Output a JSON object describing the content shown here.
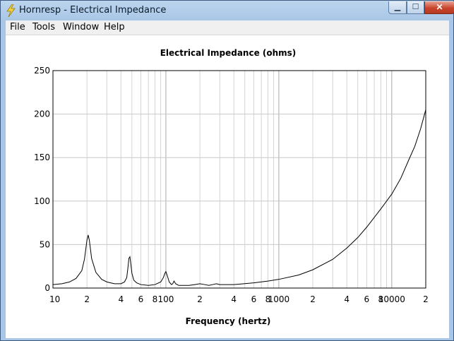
{
  "window": {
    "title": "Hornresp - Electrical Impedance",
    "icon": "lightning-bolt-icon",
    "minimize_icon": "minimize-icon",
    "maximize_icon": "maximize-icon",
    "close_icon": "close-icon"
  },
  "menu": {
    "items": [
      {
        "label": "File"
      },
      {
        "label": "Tools"
      },
      {
        "label": "Window"
      },
      {
        "label": "Help"
      }
    ]
  },
  "colors": {
    "titlebar": "#a9c6e6",
    "close_button": "#c7452c",
    "grid": "#c8c8c8",
    "curve": "#000000"
  },
  "chart_data": {
    "type": "line",
    "title": "Electrical Impedance (ohms)",
    "xlabel": "Frequency (hertz)",
    "ylabel": "",
    "x_scale": "log",
    "xlim": [
      10,
      20000
    ],
    "ylim": [
      0,
      250
    ],
    "grid": true,
    "y_ticks": [
      "0",
      "50",
      "100",
      "150",
      "200",
      "250"
    ],
    "x_tick_labels": [
      {
        "value": 10,
        "label": "10"
      },
      {
        "value": 20,
        "label": "2"
      },
      {
        "value": 40,
        "label": "4"
      },
      {
        "value": 60,
        "label": "6"
      },
      {
        "value": 80,
        "label": "8"
      },
      {
        "value": 100,
        "label": "100"
      },
      {
        "value": 200,
        "label": "2"
      },
      {
        "value": 400,
        "label": "4"
      },
      {
        "value": 600,
        "label": "6"
      },
      {
        "value": 800,
        "label": "8"
      },
      {
        "value": 1000,
        "label": "1000"
      },
      {
        "value": 2000,
        "label": "2"
      },
      {
        "value": 4000,
        "label": "4"
      },
      {
        "value": 6000,
        "label": "6"
      },
      {
        "value": 8000,
        "label": "8"
      },
      {
        "value": 10000,
        "label": "10000"
      },
      {
        "value": 20000,
        "label": "2"
      }
    ],
    "series": [
      {
        "x": [
          10,
          12,
          14,
          16,
          18,
          19,
          20,
          20.5,
          21,
          22,
          24,
          27,
          30,
          35,
          40,
          43,
          45,
          46,
          47,
          48,
          49,
          50,
          52,
          55,
          60,
          70,
          80,
          90,
          95,
          98,
          100,
          103,
          107,
          112,
          115,
          118,
          122,
          130,
          140,
          160,
          180,
          200,
          220,
          240,
          260,
          280,
          300,
          400,
          600,
          800,
          1000,
          1500,
          2000,
          3000,
          4000,
          5000,
          6000,
          8000,
          10000,
          12000,
          14000,
          16000,
          18000,
          20000
        ],
        "y": [
          4,
          5,
          7,
          11,
          20,
          33,
          55,
          61,
          55,
          34,
          18,
          10,
          7,
          5,
          5,
          7,
          12,
          22,
          34,
          36,
          27,
          17,
          9,
          6,
          4,
          3,
          4,
          7,
          12,
          17,
          19,
          14,
          7,
          4,
          5,
          8,
          5,
          3,
          3,
          3,
          4,
          5,
          4,
          3,
          4,
          5,
          4,
          4,
          6,
          8,
          10,
          15,
          21,
          33,
          46,
          58,
          70,
          91,
          108,
          126,
          146,
          163,
          183,
          205
        ]
      }
    ]
  }
}
